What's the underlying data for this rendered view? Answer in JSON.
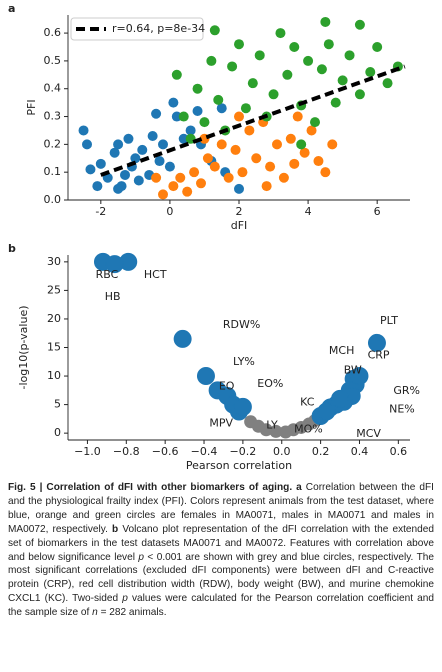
{
  "chart_data": [
    {
      "type": "scatter",
      "panel": "a",
      "xlabel": "dFI",
      "ylabel": "PFI",
      "xlim": [
        -2.95,
        6.95
      ],
      "ylim": [
        0,
        0.665
      ],
      "xticks": [
        -2,
        0,
        2,
        4,
        6
      ],
      "yticks": [
        {
          "value": 0,
          "label": "0.0"
        },
        0.1,
        0.2,
        0.3,
        0.4,
        0.5,
        0.6
      ],
      "legend": "upper left",
      "series": [
        {
          "color": "#1f77b4",
          "x": [
            -2.5,
            -2.4,
            -2.3,
            -2.1,
            -2,
            -1.8,
            -1.6,
            -1.5,
            -1.4,
            -1.3,
            -1.2,
            -1.1,
            -1,
            -0.9,
            -0.8,
            -0.6,
            -0.4,
            -0.2,
            0,
            0.2,
            0.4,
            0.6,
            0.9,
            1.2,
            1.6,
            2,
            -1.5,
            -0.3,
            0.1,
            0.8,
            -0.5,
            1.5
          ],
          "values": [
            0.25,
            0.2,
            0.11,
            0.05,
            0.13,
            0.08,
            0.17,
            0.2,
            0.05,
            0.09,
            0.22,
            0.12,
            0.15,
            0.07,
            0.18,
            0.09,
            0.31,
            0.2,
            0.12,
            0.3,
            0.22,
            0.25,
            0.2,
            0.14,
            0.1,
            0.04,
            0.04,
            0.14,
            0.35,
            0.32,
            0.23,
            0.33
          ]
        },
        {
          "color": "#ff7f0e",
          "x": [
            0.1,
            0.3,
            0.5,
            0.7,
            0.9,
            1.1,
            1.3,
            1.5,
            1.7,
            1.9,
            2.1,
            2.3,
            2.5,
            2.7,
            2.9,
            3.1,
            3.3,
            3.5,
            3.7,
            3.9,
            4.1,
            4.3,
            4.5,
            4.7,
            2.0,
            -0.4,
            -0.2,
            1.0,
            2.8,
            3.6
          ],
          "values": [
            0.05,
            0.08,
            0.03,
            0.1,
            0.06,
            0.15,
            0.12,
            0.2,
            0.08,
            0.18,
            0.1,
            0.25,
            0.15,
            0.28,
            0.12,
            0.2,
            0.08,
            0.22,
            0.3,
            0.17,
            0.25,
            0.14,
            0.1,
            0.2,
            0.3,
            0.08,
            0.02,
            0.22,
            0.05,
            0.13
          ]
        },
        {
          "color": "#2ca02c",
          "x": [
            0.2,
            0.4,
            0.6,
            0.8,
            1,
            1.2,
            1.4,
            1.6,
            1.8,
            2,
            2.2,
            2.4,
            2.6,
            2.8,
            3,
            3.2,
            3.4,
            3.6,
            3.8,
            4,
            4.2,
            4.4,
            4.6,
            4.8,
            5,
            5.2,
            5.5,
            5.8,
            6,
            6.3,
            6.6,
            5.5,
            1.3,
            4.5,
            3.8
          ],
          "values": [
            0.45,
            0.3,
            0.22,
            0.4,
            0.28,
            0.5,
            0.36,
            0.25,
            0.48,
            0.56,
            0.33,
            0.42,
            0.52,
            0.3,
            0.38,
            0.6,
            0.45,
            0.55,
            0.34,
            0.5,
            0.28,
            0.47,
            0.56,
            0.35,
            0.43,
            0.52,
            0.38,
            0.46,
            0.55,
            0.42,
            0.48,
            0.63,
            0.61,
            0.64,
            0.2
          ]
        },
        {
          "name": "r=0.64, p=8e-34",
          "style": "dashed",
          "color": "#000000",
          "x": [
            -2,
            6.8
          ],
          "values": [
            0.09,
            0.48
          ]
        }
      ]
    },
    {
      "type": "scatter",
      "panel": "b",
      "xlabel": "Pearson correlation",
      "ylabel": "-log10(p-value)",
      "xlim": [
        -1.1,
        0.66
      ],
      "ylim": [
        -1.2,
        31.2
      ],
      "xticks": [
        {
          "value": -1,
          "label": "−1.0"
        },
        {
          "value": -0.8,
          "label": "−0.8"
        },
        {
          "value": -0.6,
          "label": "−0.6"
        },
        {
          "value": -0.4,
          "label": "−0.4"
        },
        {
          "value": -0.2,
          "label": "−0.2"
        },
        {
          "value": 0,
          "label": "0.0"
        },
        0.2,
        0.4,
        0.6
      ],
      "yticks": [
        0,
        5,
        10,
        15,
        20,
        25,
        30
      ],
      "series": [
        {
          "color": "#808080",
          "x": [
            -0.16,
            -0.12,
            -0.08,
            -0.03,
            0.02,
            0.06,
            0.1,
            0.14,
            0.17
          ],
          "values": [
            2,
            1.2,
            0.6,
            0.3,
            0.2,
            0.6,
            1,
            1.6,
            2.2
          ],
          "labels": [
            null,
            null,
            null,
            null,
            null,
            "MO%",
            null,
            null,
            null
          ]
        },
        {
          "color": "#1f77b4",
          "x": [
            -0.92,
            -0.79,
            -0.86,
            -0.51,
            -0.39,
            -0.33,
            -0.28,
            -0.25,
            -0.22,
            -0.2,
            0.49,
            0.37,
            0.38,
            0.35,
            0.36,
            0.32,
            0.25,
            0.2,
            0.28,
            0.3,
            0.23,
            0.4
          ],
          "values": [
            30,
            30,
            29.6,
            16.5,
            10,
            7.5,
            6.5,
            5,
            3.8,
            4.6,
            15.8,
            9.5,
            8.5,
            7.5,
            6.5,
            5.5,
            4.5,
            3,
            5,
            6,
            3.8,
            10
          ],
          "labels": [
            "RBC",
            "HCT",
            "HB",
            "RDW%",
            "LY%",
            "EO",
            "EO%",
            "MPV",
            "LY",
            null,
            "PLT",
            "MCH",
            "CRP",
            "BW",
            "GR%",
            "NE%",
            "KC",
            "MCV",
            null,
            null,
            null,
            null
          ]
        }
      ]
    }
  ],
  "caption": {
    "runs": [
      {
        "text": "Fig. 5 | Correlation of dFI with other biomarkers of aging.",
        "style": "bold"
      },
      {
        "text": " ",
        "style": "normal"
      },
      {
        "text": "a",
        "style": "bold"
      },
      {
        "text": " Correlation between the dFI and the physiological frailty index (PFI). Colors represent animals from the test dataset, where blue, orange and green circles are females in MA0071, males in MA0071 and males in MA0072, respectively. ",
        "style": "normal"
      },
      {
        "text": "b",
        "style": "bold"
      },
      {
        "text": " Volcano plot representation of the dFI correlation with the extended set of biomarkers in the test datasets MA0071 and MA0072. Features with correlation above and below significance level ",
        "style": "normal"
      },
      {
        "text": "p",
        "style": "italic"
      },
      {
        "text": " < 0.001 are shown with grey and blue circles, respectively. The most significant correlations (excluded dFI components) were between dFI and C-reactive protein (CRP), red cell distribution width (RDW), body weight (BW), and murine chemokine CXCL1 (KC). Two-sided ",
        "style": "normal"
      },
      {
        "text": "p",
        "style": "italic"
      },
      {
        "text": " values were calculated for the Pearson correlation coefficient and the sample size of ",
        "style": "normal"
      },
      {
        "text": "n",
        "style": "italic"
      },
      {
        "text": " = 282 animals.",
        "style": "normal"
      }
    ]
  }
}
